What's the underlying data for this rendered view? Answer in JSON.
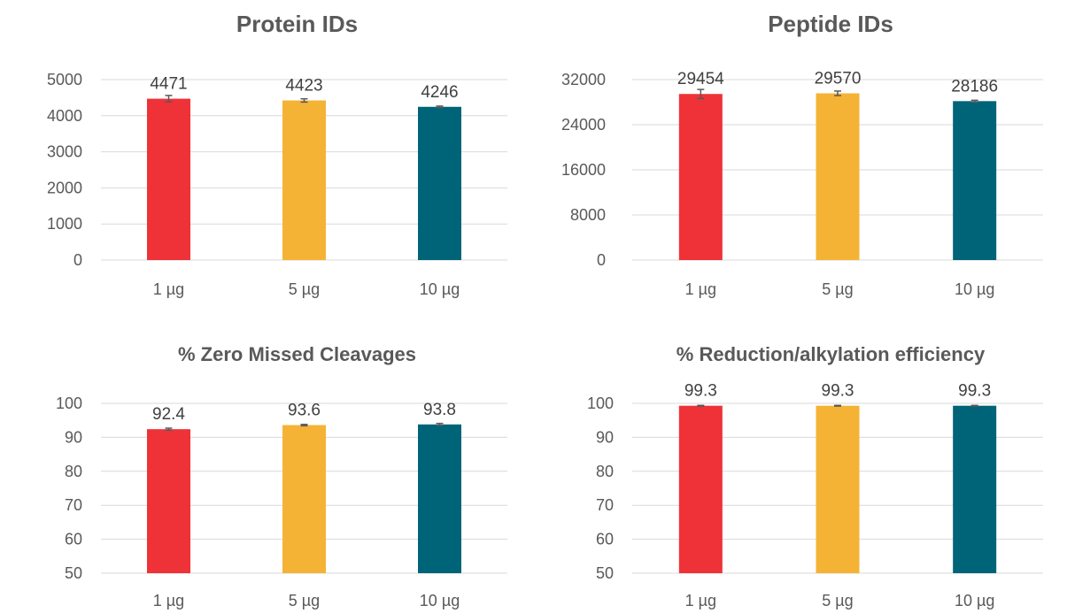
{
  "charts": [
    {
      "chart_data": {
        "type": "bar",
        "title": "Protein IDs",
        "categories": [
          "1 µg",
          "5 µg",
          "10 µg"
        ],
        "values": [
          4471,
          4423,
          4246
        ],
        "data_labels": [
          "4471",
          "4423",
          "4246"
        ],
        "errors": [
          90,
          45,
          20
        ],
        "ylim": [
          0,
          5000
        ],
        "yticks": [
          0,
          1000,
          2000,
          3000,
          4000,
          5000
        ],
        "ytick_labels": [
          "0",
          "1000",
          "2000",
          "3000",
          "4000",
          "5000"
        ],
        "grid": true
      }
    },
    {
      "chart_data": {
        "type": "bar",
        "title": "Peptide IDs",
        "categories": [
          "1 µg",
          "5 µg",
          "10 µg"
        ],
        "values": [
          29454,
          29570,
          28186
        ],
        "data_labels": [
          "29454",
          "29570",
          "28186"
        ],
        "errors": [
          800,
          400,
          150
        ],
        "ylim": [
          0,
          32000
        ],
        "yticks": [
          0,
          8000,
          16000,
          24000,
          32000
        ],
        "ytick_labels": [
          "0",
          "8000",
          "16000",
          "24000",
          "32000"
        ],
        "grid": true
      }
    },
    {
      "chart_data": {
        "type": "bar",
        "title": "% Zero Missed Cleavages",
        "categories": [
          "1 µg",
          "5 µg",
          "10 µg"
        ],
        "values": [
          92.4,
          93.6,
          93.8
        ],
        "data_labels": [
          "92.4",
          "93.6",
          "93.8"
        ],
        "errors": [
          0.3,
          0.2,
          0.3
        ],
        "ylim": [
          50,
          100
        ],
        "yticks": [
          50,
          60,
          70,
          80,
          90,
          100
        ],
        "ytick_labels": [
          "50",
          "60",
          "70",
          "80",
          "90",
          "100"
        ],
        "grid": true
      }
    },
    {
      "chart_data": {
        "type": "bar",
        "title": "% Reduction/alkylation efficiency",
        "categories": [
          "1 µg",
          "5 µg",
          "10 µg"
        ],
        "values": [
          99.3,
          99.3,
          99.3
        ],
        "data_labels": [
          "99.3",
          "99.3",
          "99.3"
        ],
        "errors": [
          0.1,
          0.1,
          0.1
        ],
        "ylim": [
          50,
          100
        ],
        "yticks": [
          50,
          60,
          70,
          80,
          90,
          100
        ],
        "ytick_labels": [
          "50",
          "60",
          "70",
          "80",
          "90",
          "100"
        ],
        "grid": true
      }
    }
  ],
  "colors": {
    "bars": [
      "#ee3237",
      "#f5b335",
      "#006479"
    ],
    "grid": "#d9d9d9",
    "error_bar": "#595959"
  }
}
